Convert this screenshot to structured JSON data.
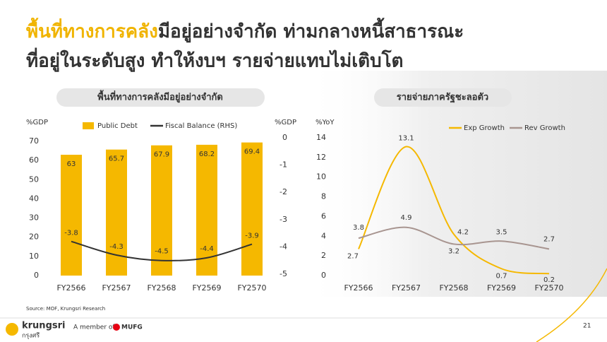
{
  "slide": {
    "title_highlight": "พื้นที่ทางการคลัง",
    "title_rest": "มีอยู่อย่างจำกัด ท่ามกลางหนี้สาธารณะ",
    "title_line2": "ที่อยู่ในระดับสูง ทำให้งบฯ รายจ่ายแทบไม่เติบโต",
    "source": "Source: MOF, Krungsri Research",
    "logo": "krungsri",
    "logo_thai": "กรุงศรี",
    "member": "A member of",
    "mufg": "MUFG",
    "page_number": "21"
  },
  "chart_data": [
    {
      "type": "bar",
      "title": "พื้นที่ทางการคลังมีอยู่อย่างจำกัด",
      "y_label": "%GDP",
      "y2_label": "%GDP",
      "categories": [
        "FY2566",
        "FY2567",
        "FY2568",
        "FY2569",
        "FY2570"
      ],
      "series": [
        {
          "name": "Public Debt",
          "color": "#f5b800",
          "values": [
            63,
            65.7,
            67.9,
            68.2,
            69.4
          ]
        },
        {
          "name": "Fiscal Balance (RHS)",
          "color": "#333333",
          "axis": "y2",
          "values": [
            -3.8,
            -4.3,
            -4.5,
            -4.4,
            -3.9
          ]
        }
      ],
      "ylim": [
        0,
        70
      ],
      "yticks": [
        0,
        10,
        20,
        30,
        40,
        50,
        60,
        70
      ],
      "y2lim": [
        -5,
        0
      ],
      "y2ticks": [
        0,
        -1,
        -2,
        -3,
        -4,
        -5
      ]
    },
    {
      "type": "line",
      "title": "รายจ่ายภาครัฐชะลอตัว",
      "y_label": "%YoY",
      "categories": [
        "FY2566",
        "FY2567",
        "FY2568",
        "FY2569",
        "FY2570"
      ],
      "series": [
        {
          "name": "Exp Growth",
          "color": "#f5b800",
          "values": [
            2.7,
            13.1,
            4.2,
            0.7,
            0.2
          ]
        },
        {
          "name": "Rev Growth",
          "color": "#a89590",
          "values": [
            3.8,
            4.9,
            3.2,
            3.5,
            2.7
          ]
        }
      ],
      "ylim": [
        0,
        14
      ],
      "yticks": [
        0,
        2,
        4,
        6,
        8,
        10,
        12,
        14
      ]
    }
  ]
}
